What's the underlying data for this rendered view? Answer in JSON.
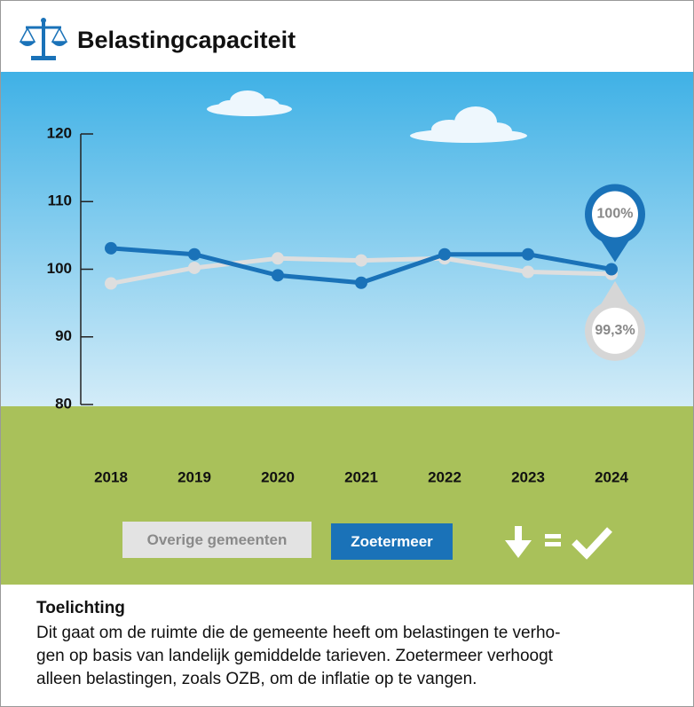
{
  "header": {
    "title": "Belastingcapaciteit"
  },
  "chart_data": {
    "type": "line",
    "categories": [
      "2018",
      "2019",
      "2020",
      "2021",
      "2022",
      "2023",
      "2024"
    ],
    "series": [
      {
        "name": "Overige gemeenten",
        "color": "#dedede",
        "values": [
          97.9,
          100.2,
          101.6,
          101.3,
          101.6,
          99.6,
          99.3
        ],
        "value_labels": [
          null,
          null,
          null,
          null,
          null,
          null,
          "99,3%"
        ]
      },
      {
        "name": "Zoetermeer",
        "color": "#1a72b8",
        "values": [
          103.1,
          102.2,
          99.1,
          98.0,
          102.2,
          102.2,
          100
        ],
        "value_labels": [
          null,
          null,
          null,
          null,
          null,
          null,
          "100%"
        ]
      }
    ],
    "ylim": [
      80,
      120
    ],
    "yticks": [
      80,
      90,
      100,
      110,
      120
    ]
  },
  "footer": {
    "heading": "Toelichting",
    "lines": [
      "Dit gaat om de ruimte die de gemeente heeft om belastingen te verho-",
      "gen op basis van landelijk gemiddelde tarieven. Zoetermeer verhoogt",
      "alleen belastingen, zoals OZB, om de inflatie op te vangen."
    ]
  }
}
